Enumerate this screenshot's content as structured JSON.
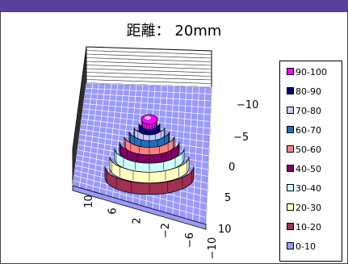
{
  "chart_data": {
    "type": "surface",
    "title": "距離： 20mm",
    "x_ticks": [
      "10",
      "6",
      "2",
      "−2",
      "−6",
      "−10"
    ],
    "y_ticks": [
      "−10",
      "−5",
      "0",
      "5",
      "10"
    ],
    "legend": [
      {
        "label": "90-100",
        "color": "#ff00ff"
      },
      {
        "label": "80-90",
        "color": "#000080"
      },
      {
        "label": "70-80",
        "color": "#c8c8ff"
      },
      {
        "label": "60-70",
        "color": "#1f6fbf"
      },
      {
        "label": "50-60",
        "color": "#ff8080"
      },
      {
        "label": "40-50",
        "color": "#800060"
      },
      {
        "label": "30-40",
        "color": "#ccffff"
      },
      {
        "label": "20-30",
        "color": "#ffffc0"
      },
      {
        "label": "10-20",
        "color": "#a03050"
      },
      {
        "label": "0-10",
        "color": "#9999ff"
      }
    ],
    "peak_band": "90-100",
    "base_band": "0-10"
  }
}
